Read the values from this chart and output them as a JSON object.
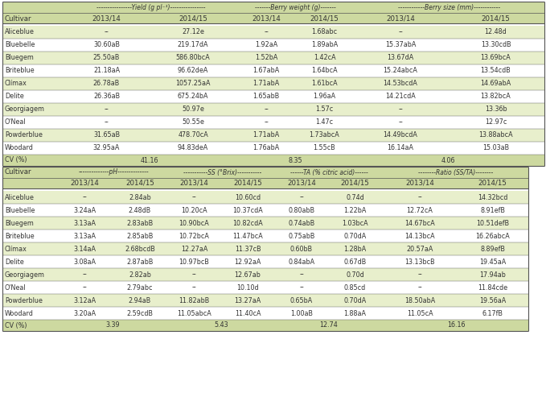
{
  "rows1": [
    [
      "Aliceblue",
      "--",
      "27.12e",
      "--",
      "1.68abc",
      "--",
      "12.48d"
    ],
    [
      "Bluebelle",
      "30.60aB",
      "219.17dA",
      "1.92aA",
      "1.89abA",
      "15.37abA",
      "13.30cdB"
    ],
    [
      "Bluegem",
      "25.50aB",
      "586.80bcA",
      "1.52bA",
      "1.42cA",
      "13.67dA",
      "13.69bcA"
    ],
    [
      "Briteblue",
      "21.18aA",
      "96.62deA",
      "1.67abA",
      "1.64bcA",
      "15.24abcA",
      "13.54cdB"
    ],
    [
      "Clímax",
      "26.78aB",
      "1057.25aA",
      "1.71abA",
      "1.61bcA",
      "14.53bcdA",
      "14.69abA"
    ],
    [
      "Delite",
      "26.36aB",
      "675.24bA",
      "1.65abB",
      "1.96aA",
      "14.21cdA",
      "13.82bcA"
    ],
    [
      "Georgiagem",
      "--",
      "50.97e",
      "--",
      "1.57c",
      "--",
      "13.36b"
    ],
    [
      "O'Neal",
      "--",
      "50.55e",
      "--",
      "1.47c",
      "--",
      "12.97c"
    ],
    [
      "Powderblue",
      "31.65aB",
      "478.70cA",
      "1.71abA",
      "1.73abcA",
      "14.49bcdA",
      "13.88abcA"
    ],
    [
      "Woodard",
      "32.95aA",
      "94.83deA",
      "1.76abA",
      "1.55cB",
      "16.14aA",
      "15.03aB"
    ]
  ],
  "cv1": [
    "CV (%)",
    "41.16",
    "8.35",
    "4.06"
  ],
  "rows2": [
    [
      "Aliceblue",
      "--",
      "2.84ab",
      "--",
      "10.60cd",
      "--",
      "0.74d",
      "--",
      "14.32bcd"
    ],
    [
      "Bluebelle",
      "3.24aA",
      "2.48dB",
      "10.20cA",
      "10.37cdA",
      "0.80abB",
      "1.22bA",
      "12.72cA",
      "8.91efB"
    ],
    [
      "Bluegem",
      "3.13aA",
      "2.83abB",
      "10.90bcA",
      "10.82cdA",
      "0.74abB",
      "1.03bcA",
      "14.67bcA",
      "10.51defB"
    ],
    [
      "Briteblue",
      "3.13aA",
      "2.85abB",
      "10.72bcA",
      "11.47bcA",
      "0.75abB",
      "0.70dA",
      "14.13bcA",
      "16.26abcA"
    ],
    [
      "Clímax",
      "3.14aA",
      "2.68bcdB",
      "12.27aA",
      "11.37cB",
      "0.60bB",
      "1.28bA",
      "20.57aA",
      "8.89efB"
    ],
    [
      "Delite",
      "3.08aA",
      "2.87abB",
      "10.97bcB",
      "12.92aA",
      "0.84abA",
      "0.67dB",
      "13.13bcB",
      "19.45aA"
    ],
    [
      "Georgiagem",
      "--",
      "2.82ab",
      "--",
      "12.67ab",
      "--",
      "0.70d",
      "--",
      "17.94ab"
    ],
    [
      "O'Neal",
      "--",
      "2.79abc",
      "--",
      "10.10d",
      "--",
      "0.85cd",
      "--",
      "11.84cde"
    ],
    [
      "Powderblue",
      "3.12aA",
      "2.94aB",
      "11.82abB",
      "13.27aA",
      "0.65bA",
      "0.70dA",
      "18.50abA",
      "19.56aA"
    ],
    [
      "Woodard",
      "3.20aA",
      "2.59cdB",
      "11.05abcA",
      "11.40cA",
      "1.00aB",
      "1.88aA",
      "11.05cA",
      "6.17fB"
    ]
  ],
  "cv2": [
    "CV (%)",
    "3.39",
    "5.43",
    "12.74",
    "16.16"
  ],
  "t1_yield_header": "----------------Yield (g pl⁻¹)----------------",
  "t1_bw_header": "-------Berry weight (g)-------",
  "t1_bs_header": "------------Berry size (mm)------------",
  "t2_ph_header": "--------------pH--------------",
  "t2_ss_header": "-----------SS (°Brix)-----------",
  "t2_ta_header": "------TA (% citric acid)------",
  "t2_ratio_header": "--------Ratio (SS/TA)--------",
  "bg_header": "#cdd9a0",
  "bg_alt": "#e8efcc",
  "bg_white": "#ffffff",
  "fs_data": 5.8,
  "fs_header": 6.2,
  "fs_group": 5.5
}
